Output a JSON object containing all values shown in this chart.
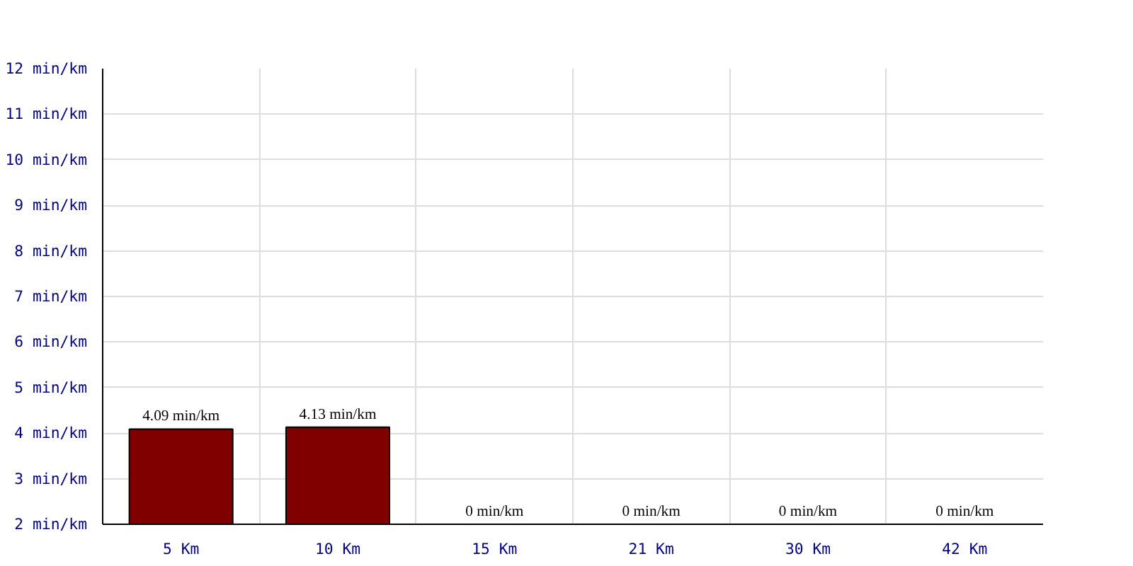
{
  "chart_data": {
    "type": "bar",
    "categories": [
      "5 Km",
      "10 Km",
      "15 Km",
      "21 Km",
      "30 Km",
      "42 Km"
    ],
    "values": [
      4.09,
      4.13,
      null,
      null,
      null,
      null
    ],
    "value_labels": [
      "4.09 min/km",
      "4.13 min/km",
      "0 min/km",
      "0 min/km",
      "0 min/km",
      "0 min/km"
    ],
    "color": "#800000",
    "ylim": [
      2,
      12
    ],
    "yticks": [
      {
        "value": 2,
        "label": "2 min/km"
      },
      {
        "value": 3,
        "label": "3 min/km"
      },
      {
        "value": 4,
        "label": "4 min/km"
      },
      {
        "value": 5,
        "label": "5 min/km"
      },
      {
        "value": 6,
        "label": "6 min/km"
      },
      {
        "value": 7,
        "label": "7 min/km"
      },
      {
        "value": 8,
        "label": "8 min/km"
      },
      {
        "value": 9,
        "label": "9 min/km"
      },
      {
        "value": 10,
        "label": "10 min/km"
      },
      {
        "value": 11,
        "label": "11 min/km"
      },
      {
        "value": 12,
        "label": "12 min/km"
      }
    ],
    "grid": true
  }
}
